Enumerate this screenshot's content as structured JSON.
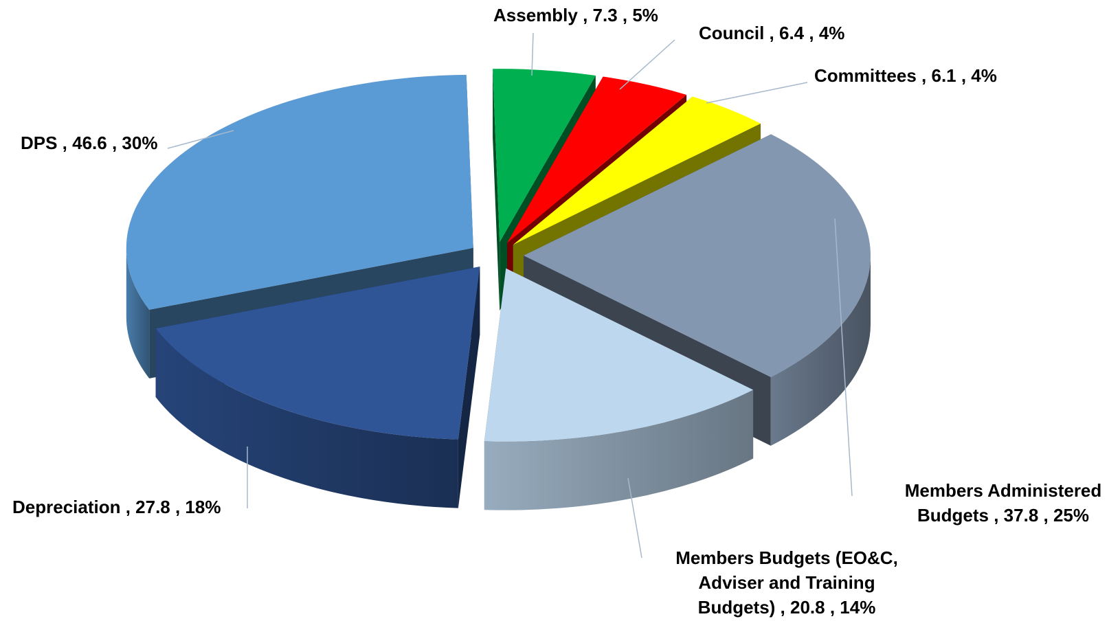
{
  "chart_data": {
    "type": "pie",
    "variant": "3d-exploded",
    "title": "",
    "legend": "none",
    "slices": [
      {
        "name": "Assembly",
        "value": 7.3,
        "percent": "5%",
        "color": "#00b050",
        "label_lines": [
          "Assembly ,  7.3 , 5%"
        ]
      },
      {
        "name": "Council",
        "value": 6.4,
        "percent": "4%",
        "color": "#ff0000",
        "label_lines": [
          "Council ,  6.4 , 4%"
        ]
      },
      {
        "name": "Committees",
        "value": 6.1,
        "percent": "4%",
        "color": "#ffff00",
        "label_lines": [
          "Committees ,  6.1 , 4%"
        ]
      },
      {
        "name": "Members Administered Budgets",
        "value": 37.8,
        "percent": "25%",
        "color": "#8497b0",
        "label_lines": [
          "Members Administered",
          "Budgets ,  37.8 , 25%"
        ]
      },
      {
        "name": "Members Budgets (EO&C, Adviser and Training Budgets)",
        "value": 20.8,
        "percent": "14%",
        "color": "#bdd7ee",
        "label_lines": [
          "Members Budgets (EO&C,",
          "Adviser and Training",
          "Budgets) ,  20.8 , 14%"
        ]
      },
      {
        "name": "Depreciation",
        "value": 27.8,
        "percent": "18%",
        "color": "#2f5597",
        "label_lines": [
          "Depreciation ,  27.8 , 18%"
        ]
      },
      {
        "name": "DPS",
        "value": 46.6,
        "percent": "30%",
        "color": "#5b9bd5",
        "label_lines": [
          "DPS ,  46.6 , 30%"
        ]
      }
    ]
  }
}
